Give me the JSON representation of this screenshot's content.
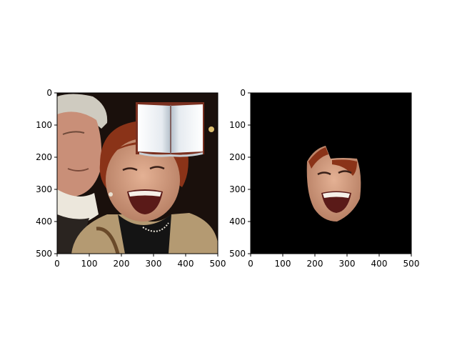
{
  "panels": [
    {
      "name": "original-image-panel",
      "description_marks": "photo with overlaid open book icon",
      "x_ticks": [
        "0",
        "100",
        "200",
        "300",
        "400",
        "500"
      ],
      "y_ticks": [
        "0",
        "100",
        "200",
        "300",
        "400",
        "500"
      ],
      "xlim": [
        0,
        500
      ],
      "ylim": [
        500,
        0
      ]
    },
    {
      "name": "masked-face-panel",
      "description_marks": "black background with isolated face region",
      "x_ticks": [
        "0",
        "100",
        "200",
        "300",
        "400",
        "500"
      ],
      "y_ticks": [
        "0",
        "100",
        "200",
        "300",
        "400",
        "500"
      ],
      "xlim": [
        0,
        500
      ],
      "ylim": [
        500,
        0
      ]
    }
  ],
  "colors": {
    "photo_background": "#1a100c",
    "mask_background": "#000000",
    "skin": "#d9a184",
    "hair_red": "#8a3318",
    "hair_grey": "#cfcbc0",
    "coat": "#b49a72",
    "book_page": "#f1f4f7",
    "book_cover": "#7a3020"
  }
}
